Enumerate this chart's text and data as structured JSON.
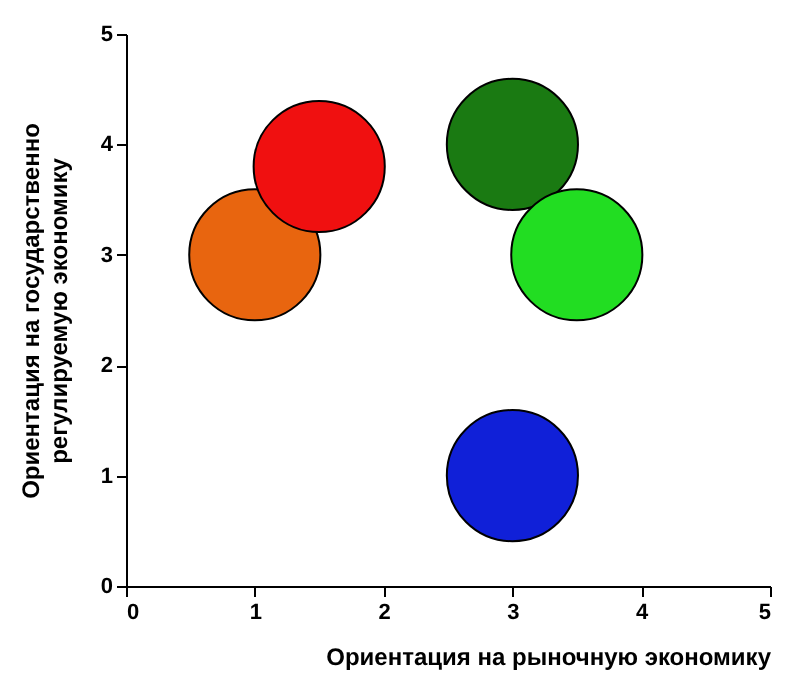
{
  "chart_data": {
    "type": "bubble",
    "xlabel": "Ориентация на рыночную экономику",
    "ylabel": "Ориентация на государственно\nрегулируемую экономику",
    "x": [
      1,
      1.5,
      3,
      3.5,
      3
    ],
    "values": [
      3,
      3.8,
      4,
      3,
      1
    ],
    "sizes": [
      1,
      1,
      1,
      1,
      1
    ],
    "colors": [
      "#e8650f",
      "#f01010",
      "#1a7a12",
      "#22dd22",
      "#1020d8"
    ],
    "xlim": [
      0,
      5
    ],
    "ylim": [
      0,
      5
    ],
    "xticks": [
      0,
      1,
      2,
      3,
      4,
      5
    ],
    "yticks": [
      0,
      1,
      2,
      3,
      4,
      5
    ],
    "grid": false
  }
}
